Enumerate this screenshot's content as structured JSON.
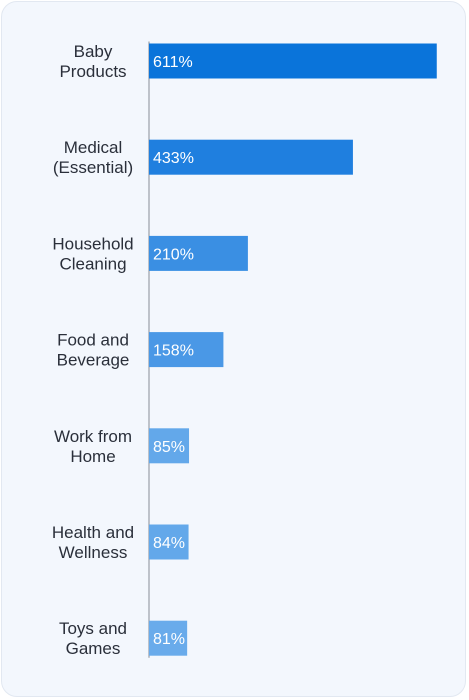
{
  "chart_data": {
    "type": "bar",
    "orientation": "horizontal",
    "title": "",
    "xlabel": "",
    "ylabel": "",
    "categories": [
      [
        "Baby",
        "Products"
      ],
      [
        "Medical",
        "(Essential)"
      ],
      [
        "Household",
        "Cleaning"
      ],
      [
        "Food and",
        "Beverage"
      ],
      [
        "Work from",
        "Home"
      ],
      [
        "Health and",
        "Wellness"
      ],
      [
        "Toys and",
        "Games"
      ]
    ],
    "values": [
      611,
      433,
      210,
      158,
      85,
      84,
      81
    ],
    "value_labels": [
      "611%",
      "433%",
      "210%",
      "158%",
      "85%",
      "84%",
      "81%"
    ],
    "colors": [
      "#0a74da",
      "#1f7fdf",
      "#3a8fe3",
      "#4a98e6",
      "#63a8ea",
      "#63a8ea",
      "#69abeb"
    ],
    "xlim": [
      0,
      620
    ],
    "grid": false,
    "legend": "none"
  }
}
